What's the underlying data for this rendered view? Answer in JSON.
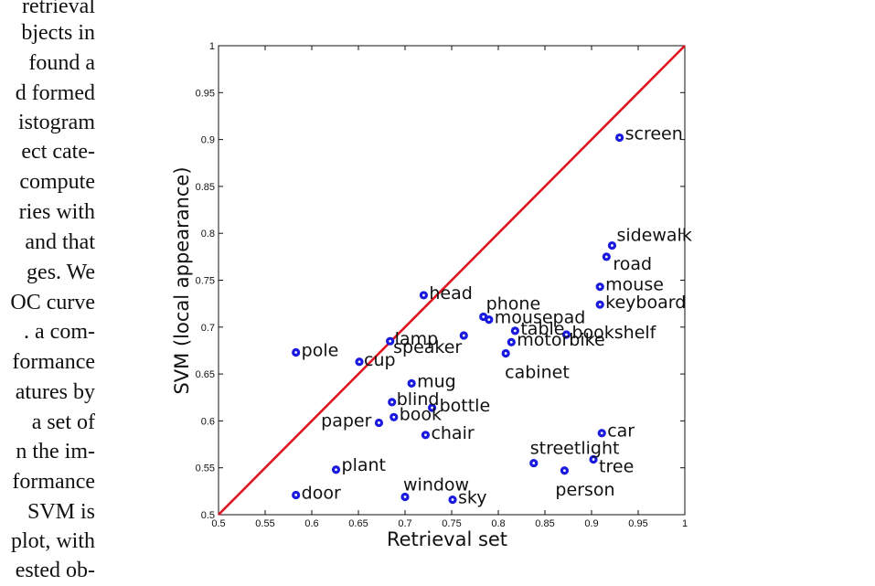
{
  "body_text": {
    "lines": [
      "retrieval",
      "bjects in",
      "found a",
      "d formed",
      "istogram",
      "ect cate-",
      "compute",
      "ries with",
      "and that",
      "ges.  We",
      "OC curve",
      ". a com-",
      "formance",
      "atures by",
      "a set of",
      "n the im-",
      "formance",
      "SVM is",
      "plot, with",
      "ested ob-"
    ]
  },
  "chart_data": {
    "type": "scatter",
    "title": "",
    "xlabel": "Retrieval set",
    "ylabel": "SVM (local appearance)",
    "xlim": [
      0.5,
      1
    ],
    "ylim": [
      0.5,
      1
    ],
    "xticks": [
      "0.5",
      "0.55",
      "0.6",
      "0.65",
      "0.7",
      "0.75",
      "0.8",
      "0.85",
      "0.9",
      "0.95",
      "1"
    ],
    "yticks": [
      "0.5",
      "0.55",
      "0.6",
      "0.65",
      "0.7",
      "0.75",
      "0.8",
      "0.85",
      "0.9",
      "0.95",
      "1"
    ],
    "grid": false,
    "reference_line": {
      "from": [
        0.5,
        0.5
      ],
      "to": [
        1,
        1
      ],
      "color": "#e0141e"
    },
    "point_color": "#1a1adf",
    "points": [
      {
        "label": "screen",
        "x": 0.93,
        "y": 0.902
      },
      {
        "label": "sidewalk",
        "x": 0.922,
        "y": 0.787
      },
      {
        "label": "road",
        "x": 0.916,
        "y": 0.775
      },
      {
        "label": "mouse",
        "x": 0.909,
        "y": 0.743
      },
      {
        "label": "keyboard",
        "x": 0.909,
        "y": 0.724
      },
      {
        "label": "head",
        "x": 0.72,
        "y": 0.734
      },
      {
        "label": "phone",
        "x": 0.784,
        "y": 0.711
      },
      {
        "label": "mousepad",
        "x": 0.79,
        "y": 0.708
      },
      {
        "label": "table",
        "x": 0.818,
        "y": 0.696
      },
      {
        "label": "bookshelf",
        "x": 0.873,
        "y": 0.692
      },
      {
        "label": "speaker",
        "x": 0.763,
        "y": 0.691
      },
      {
        "label": "motorbike",
        "x": 0.814,
        "y": 0.684
      },
      {
        "label": "cabinet",
        "x": 0.808,
        "y": 0.672
      },
      {
        "label": "lamp",
        "x": 0.684,
        "y": 0.685
      },
      {
        "label": "pole",
        "x": 0.583,
        "y": 0.673
      },
      {
        "label": "cup",
        "x": 0.651,
        "y": 0.663
      },
      {
        "label": "mug",
        "x": 0.707,
        "y": 0.64
      },
      {
        "label": "blind",
        "x": 0.686,
        "y": 0.62
      },
      {
        "label": "bottle",
        "x": 0.729,
        "y": 0.614
      },
      {
        "label": "paper",
        "x": 0.672,
        "y": 0.598
      },
      {
        "label": "book",
        "x": 0.688,
        "y": 0.604
      },
      {
        "label": "chair",
        "x": 0.722,
        "y": 0.585
      },
      {
        "label": "car",
        "x": 0.911,
        "y": 0.587
      },
      {
        "label": "streetlight",
        "x": 0.838,
        "y": 0.555
      },
      {
        "label": "tree",
        "x": 0.902,
        "y": 0.559
      },
      {
        "label": "person",
        "x": 0.871,
        "y": 0.547
      },
      {
        "label": "plant",
        "x": 0.626,
        "y": 0.548
      },
      {
        "label": "window",
        "x": 0.7,
        "y": 0.519
      },
      {
        "label": "sky",
        "x": 0.751,
        "y": 0.516
      },
      {
        "label": "door",
        "x": 0.583,
        "y": 0.521
      }
    ]
  }
}
